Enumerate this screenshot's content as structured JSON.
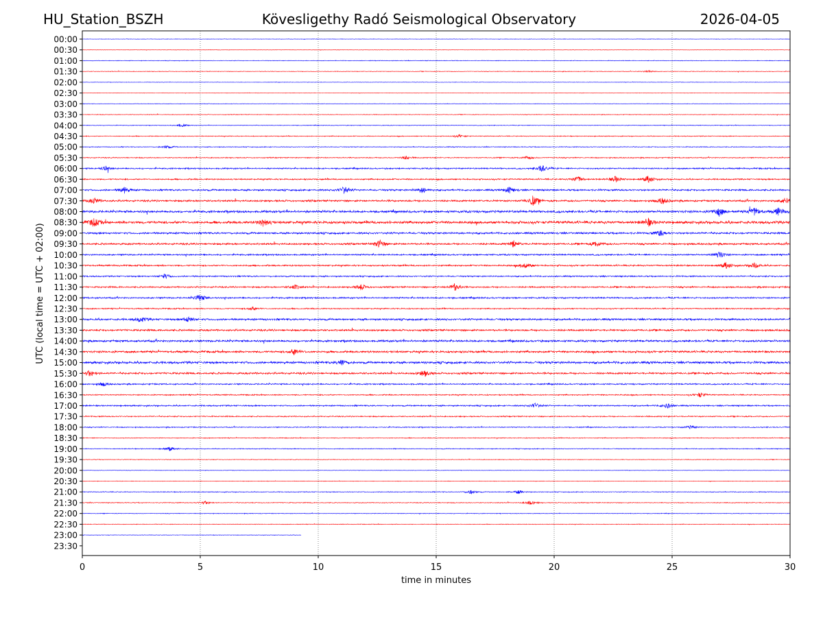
{
  "header": {
    "station": "HU_Station_BSZH",
    "title": "Kövesligethy Radó Seismological Observatory",
    "date": "2026-04-05"
  },
  "chart_data": {
    "type": "line",
    "subtype": "helicorder",
    "xlabel": "time in minutes",
    "ylabel": "UTC (local time = UTC + 02:00)",
    "xlim": [
      0,
      30
    ],
    "xticks": [
      "0",
      "5",
      "10",
      "15",
      "20",
      "25",
      "30"
    ],
    "grid": "vertical dotted at x ticks",
    "colors": [
      "#0000ff",
      "#ff0000"
    ],
    "data_end_minute_last_row": 9.27,
    "rows": [
      {
        "label": "00:00",
        "noise": 0.1,
        "events": []
      },
      {
        "label": "00:30",
        "noise": 0.1,
        "events": []
      },
      {
        "label": "01:00",
        "noise": 0.15,
        "events": []
      },
      {
        "label": "01:30",
        "noise": 0.15,
        "events": [
          [
            24,
            0.3
          ]
        ]
      },
      {
        "label": "02:00",
        "noise": 0.1,
        "events": []
      },
      {
        "label": "02:30",
        "noise": 0.1,
        "events": []
      },
      {
        "label": "03:00",
        "noise": 0.12,
        "events": []
      },
      {
        "label": "03:30",
        "noise": 0.15,
        "events": []
      },
      {
        "label": "04:00",
        "noise": 0.15,
        "events": [
          [
            4.2,
            0.5
          ]
        ]
      },
      {
        "label": "04:30",
        "noise": 0.2,
        "events": [
          [
            16,
            0.4
          ]
        ]
      },
      {
        "label": "05:00",
        "noise": 0.2,
        "events": [
          [
            3.6,
            0.5
          ]
        ]
      },
      {
        "label": "05:30",
        "noise": 0.25,
        "events": [
          [
            13.7,
            0.5
          ],
          [
            18.9,
            0.5
          ]
        ]
      },
      {
        "label": "06:00",
        "noise": 0.35,
        "events": [
          [
            19.5,
            1.0
          ],
          [
            1,
            0.6
          ]
        ]
      },
      {
        "label": "06:30",
        "noise": 0.35,
        "events": [
          [
            21,
            0.9
          ],
          [
            22.6,
            0.9
          ],
          [
            24,
            1.0
          ]
        ]
      },
      {
        "label": "07:00",
        "noise": 0.45,
        "events": [
          [
            1.8,
            0.9
          ],
          [
            11.1,
            1.0
          ],
          [
            14.4,
            0.8
          ],
          [
            18.1,
            0.9
          ]
        ]
      },
      {
        "label": "07:30",
        "noise": 0.5,
        "events": [
          [
            0.5,
            0.8
          ],
          [
            19.1,
            1.4
          ],
          [
            24.6,
            1.0
          ],
          [
            29.8,
            0.9
          ]
        ]
      },
      {
        "label": "08:00",
        "noise": 0.6,
        "events": [
          [
            27,
            1.2
          ],
          [
            28.5,
            1.2
          ],
          [
            29.5,
            1.0
          ]
        ]
      },
      {
        "label": "08:30",
        "noise": 0.7,
        "events": [
          [
            0.5,
            1.2
          ],
          [
            7.7,
            1.1
          ],
          [
            24,
            1.0
          ]
        ]
      },
      {
        "label": "09:00",
        "noise": 0.5,
        "events": [
          [
            24.5,
            0.9
          ]
        ]
      },
      {
        "label": "09:30",
        "noise": 0.5,
        "events": [
          [
            12.6,
            1.1
          ],
          [
            18.3,
            0.9
          ],
          [
            21.8,
            0.8
          ]
        ]
      },
      {
        "label": "10:00",
        "noise": 0.4,
        "events": [
          [
            27,
            1.0
          ]
        ]
      },
      {
        "label": "10:30",
        "noise": 0.4,
        "events": [
          [
            18.8,
            0.9
          ],
          [
            27.3,
            0.9
          ],
          [
            28.5,
            0.8
          ]
        ]
      },
      {
        "label": "11:00",
        "noise": 0.35,
        "events": [
          [
            3.5,
            0.7
          ]
        ]
      },
      {
        "label": "11:30",
        "noise": 0.4,
        "events": [
          [
            11.8,
            0.9
          ],
          [
            15.8,
            1.1
          ],
          [
            9,
            0.7
          ]
        ]
      },
      {
        "label": "12:00",
        "noise": 0.4,
        "events": [
          [
            5,
            1.0
          ]
        ]
      },
      {
        "label": "12:30",
        "noise": 0.3,
        "events": [
          [
            7.2,
            0.6
          ]
        ]
      },
      {
        "label": "13:00",
        "noise": 0.5,
        "events": [
          [
            2.5,
            0.8
          ],
          [
            4.5,
            0.8
          ]
        ]
      },
      {
        "label": "13:30",
        "noise": 0.5,
        "events": []
      },
      {
        "label": "14:00",
        "noise": 0.55,
        "events": []
      },
      {
        "label": "14:30",
        "noise": 0.55,
        "events": [
          [
            9,
            0.9
          ]
        ]
      },
      {
        "label": "15:00",
        "noise": 0.6,
        "events": [
          [
            11,
            0.8
          ]
        ]
      },
      {
        "label": "15:30",
        "noise": 0.5,
        "events": [
          [
            14.5,
            0.9
          ],
          [
            0.3,
            0.8
          ]
        ]
      },
      {
        "label": "16:00",
        "noise": 0.35,
        "events": [
          [
            0.9,
            0.6
          ]
        ]
      },
      {
        "label": "16:30",
        "noise": 0.3,
        "events": [
          [
            26.2,
            0.7
          ]
        ]
      },
      {
        "label": "17:00",
        "noise": 0.35,
        "events": [
          [
            19.2,
            0.7
          ],
          [
            24.8,
            0.7
          ]
        ]
      },
      {
        "label": "17:30",
        "noise": 0.3,
        "events": []
      },
      {
        "label": "18:00",
        "noise": 0.25,
        "events": [
          [
            25.8,
            0.5
          ]
        ]
      },
      {
        "label": "18:30",
        "noise": 0.2,
        "events": []
      },
      {
        "label": "19:00",
        "noise": 0.2,
        "events": [
          [
            3.7,
            0.6
          ]
        ]
      },
      {
        "label": "19:30",
        "noise": 0.15,
        "events": []
      },
      {
        "label": "20:00",
        "noise": 0.1,
        "events": []
      },
      {
        "label": "20:30",
        "noise": 0.12,
        "events": []
      },
      {
        "label": "21:00",
        "noise": 0.2,
        "events": [
          [
            16.5,
            0.6
          ],
          [
            18.5,
            0.5
          ]
        ]
      },
      {
        "label": "21:30",
        "noise": 0.2,
        "events": [
          [
            19,
            0.6
          ],
          [
            5.2,
            0.5
          ]
        ]
      },
      {
        "label": "22:00",
        "noise": 0.15,
        "events": []
      },
      {
        "label": "22:30",
        "noise": 0.15,
        "events": []
      },
      {
        "label": "23:00",
        "noise": 0.12,
        "events": []
      },
      {
        "label": "23:30",
        "noise": 0,
        "events": []
      }
    ]
  }
}
